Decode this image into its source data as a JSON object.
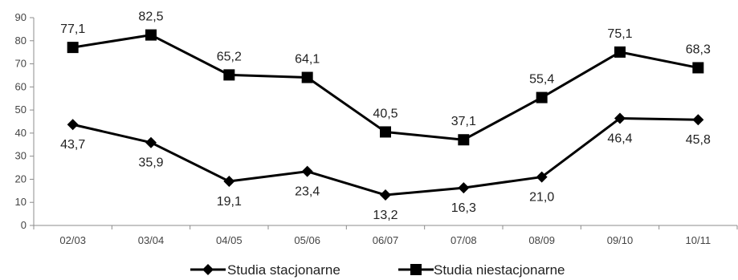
{
  "chart_data": {
    "type": "line",
    "categories": [
      "02/03",
      "03/04",
      "04/05",
      "05/06",
      "06/07",
      "07/08",
      "08/09",
      "09/10",
      "10/11"
    ],
    "series": [
      {
        "name": "Studia stacjonarne",
        "marker": "diamond",
        "values": [
          43.7,
          35.9,
          19.1,
          23.4,
          13.2,
          16.3,
          21.0,
          46.4,
          45.8
        ],
        "labels": [
          "43,7",
          "35,9",
          "19,1",
          "23,4",
          "13,2",
          "16,3",
          "21,0",
          "46,4",
          "45,8"
        ],
        "label_position": "below"
      },
      {
        "name": "Studia niestacjonarne",
        "marker": "square",
        "values": [
          77.1,
          82.5,
          65.2,
          64.1,
          40.5,
          37.1,
          55.4,
          75.1,
          68.3
        ],
        "labels": [
          "77,1",
          "82,5",
          "65,2",
          "64,1",
          "40,5",
          "37,1",
          "55,4",
          "75,1",
          "68,3"
        ],
        "label_position": "above"
      }
    ],
    "yticks": [
      "0",
      "10",
      "20",
      "30",
      "40",
      "50",
      "60",
      "70",
      "80",
      "90"
    ],
    "ylim": [
      0,
      90
    ],
    "grid": false,
    "legend_position": "bottom",
    "line_color": "#000000"
  }
}
